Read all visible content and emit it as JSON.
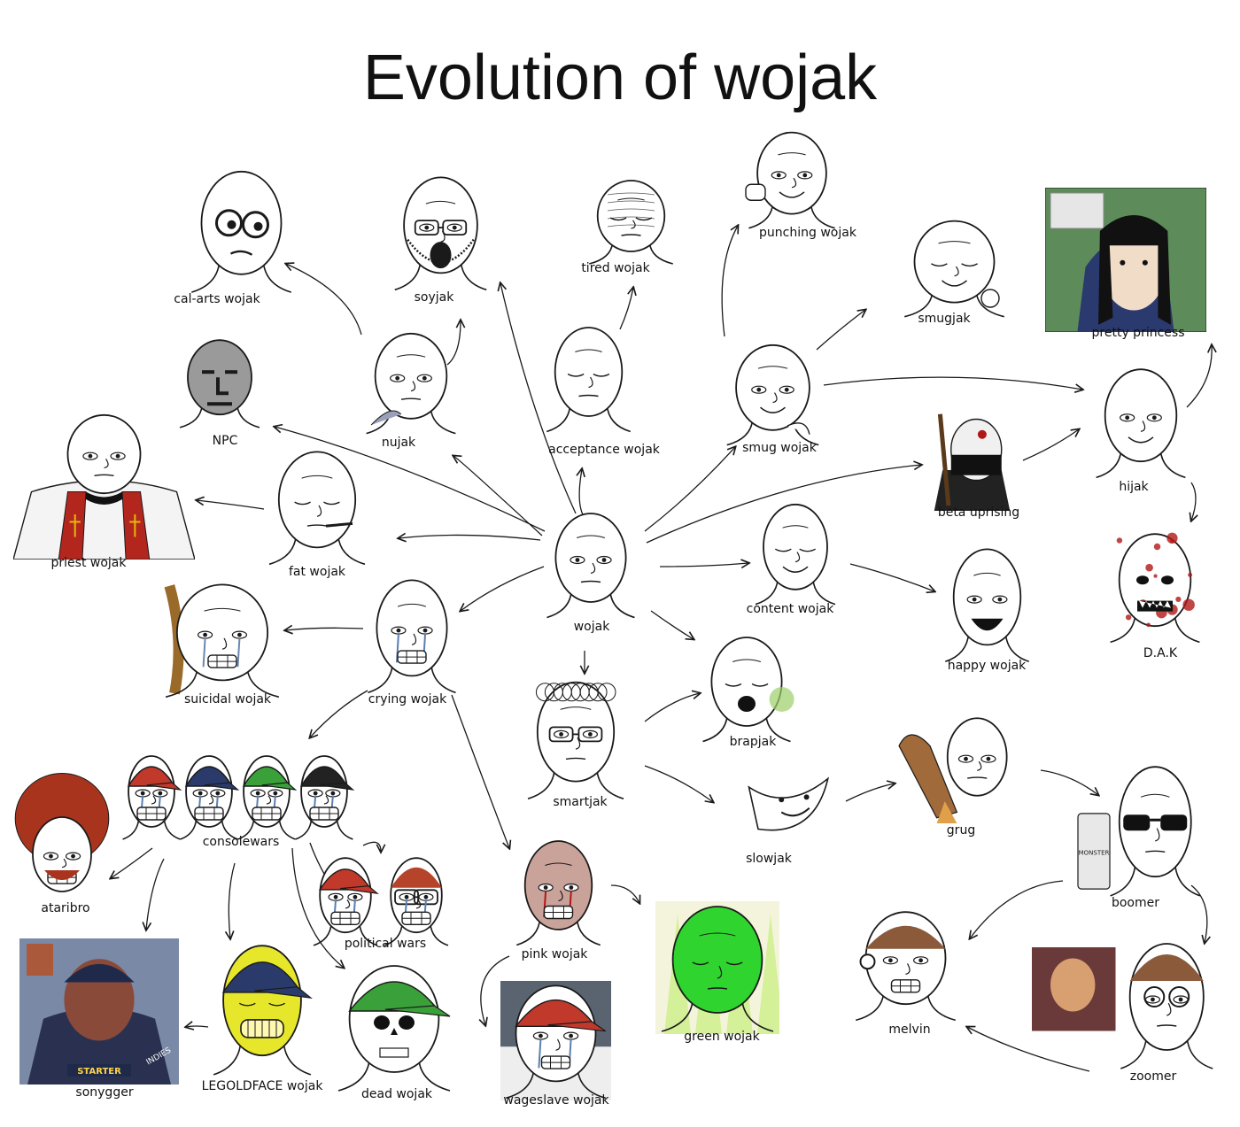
{
  "title": "Evolution of wojak",
  "palette": {
    "ink": "#1a1a1a",
    "skin": "#ffffff",
    "npc_gray": "#9a9a9a",
    "pink_skin": "#c9a29a",
    "green_skin": "#2fd42f",
    "yellow_skin": "#e6e62a",
    "blood": "#b01818",
    "priest_red": "#b3261e",
    "cap_blue": "#2a3b6b",
    "cap_green": "#3aa13a",
    "cap_red": "#c0392b",
    "gold_cross": "#e5b80b"
  },
  "nodes": {
    "wojak": {
      "label": "wojak",
      "variant": "wojak-face"
    },
    "calarts": {
      "label": "cal-arts wojak",
      "variant": "cartoon-face"
    },
    "soyjak": {
      "label": "soyjak",
      "variant": "soyjak-face"
    },
    "tired": {
      "label": "tired wojak",
      "variant": "tired-face"
    },
    "punching": {
      "label": "punching wojak",
      "variant": "punching-face"
    },
    "prettyprincess": {
      "label": "pretty princess",
      "variant": "princess-photo"
    },
    "npc": {
      "label": "NPC",
      "variant": "npc-face"
    },
    "nujak": {
      "label": "nujak",
      "variant": "nujak-face"
    },
    "acceptance": {
      "label": "acceptance wojak",
      "variant": "acceptance-face"
    },
    "smugjak": {
      "label": "smugjak",
      "variant": "smugjak-face"
    },
    "smug": {
      "label": "smug wojak",
      "variant": "smug-face"
    },
    "hijak": {
      "label": "hijak",
      "variant": "hijak-face"
    },
    "priest": {
      "label": "priest wojak",
      "variant": "priest-face"
    },
    "fat": {
      "label": "fat wojak",
      "variant": "fat-face"
    },
    "betauprising": {
      "label": "beta uprising",
      "variant": "beta-face"
    },
    "content": {
      "label": "content wojak",
      "variant": "content-face"
    },
    "happy": {
      "label": "happy wojak",
      "variant": "happy-face"
    },
    "dak": {
      "label": "D.A.K",
      "variant": "dak-face"
    },
    "suicidal": {
      "label": "suicidal wojak",
      "variant": "suicidal-face"
    },
    "crying": {
      "label": "crying wojak",
      "variant": "crying-face"
    },
    "brapjak": {
      "label": "brapjak",
      "variant": "brap-face"
    },
    "smartjak": {
      "label": "smartjak",
      "variant": "smart-face"
    },
    "grug": {
      "label": "grug",
      "variant": "grug-face"
    },
    "slowjak": {
      "label": "slowjak",
      "variant": "slow-face"
    },
    "consolewars": {
      "label": "consolewars",
      "variant": "console-faces"
    },
    "boomer": {
      "label": "boomer",
      "variant": "boomer-face",
      "can_text": "MONSTER"
    },
    "ataribro": {
      "label": "ataribro",
      "variant": "atari-face"
    },
    "politicalwars": {
      "label": "political wars",
      "variant": "political-faces"
    },
    "pink": {
      "label": "pink wojak",
      "variant": "pink-face"
    },
    "green": {
      "label": "green wojak",
      "variant": "green-face"
    },
    "melvin": {
      "label": "melvin",
      "variant": "melvin-face"
    },
    "zoomer": {
      "label": "zoomer",
      "variant": "zoomer-face"
    },
    "sonygger": {
      "label": "sonygger",
      "variant": "sony-photo",
      "banner_text": "STARTER",
      "tag_text": "INDIES"
    },
    "legoldface": {
      "label": "LEGOLDFACE wojak",
      "variant": "gold-face"
    },
    "dead": {
      "label": "dead wojak",
      "variant": "skull-face"
    },
    "wageslave": {
      "label": "wageslave wojak",
      "variant": "wage-face"
    }
  }
}
